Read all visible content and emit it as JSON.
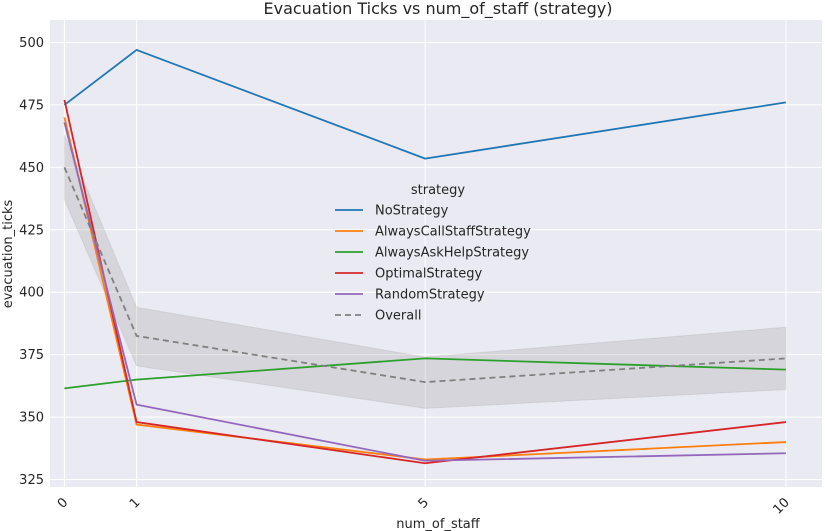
{
  "chart_data": {
    "type": "line",
    "title": "Evacuation Ticks vs num_of_staff (strategy)",
    "xlabel": "num_of_staff",
    "ylabel": "evacuation_ticks",
    "x": [
      0,
      1,
      5,
      10
    ],
    "xticks": [
      "0",
      "1",
      "5",
      "10"
    ],
    "yticks": [
      325,
      350,
      375,
      400,
      425,
      450,
      475,
      500
    ],
    "xlim": [
      -0.2,
      10.5
    ],
    "ylim": [
      322,
      509
    ],
    "grid": true,
    "legend": {
      "title": "strategy",
      "placement": "center"
    },
    "series": [
      {
        "name": "NoStrategy",
        "color": "#1f77b4",
        "values": [
          475,
          497,
          453.5,
          476
        ]
      },
      {
        "name": "AlwaysCallStaffStrategy",
        "color": "#ff7f0e",
        "values": [
          470,
          347,
          333,
          340
        ]
      },
      {
        "name": "AlwaysAskHelpStrategy",
        "color": "#2ca02c",
        "values": [
          361.5,
          365,
          373.5,
          369
        ]
      },
      {
        "name": "OptimalStrategy",
        "color": "#d62728",
        "values": [
          477,
          348,
          331.5,
          348
        ]
      },
      {
        "name": "RandomStrategy",
        "color": "#9467bd",
        "values": [
          468,
          355,
          332.5,
          335.5
        ]
      }
    ],
    "overall": {
      "name": "Overall",
      "color": "#808080",
      "values": [
        450,
        382.5,
        364,
        373.5
      ],
      "ci_low": [
        437,
        370.5,
        353.5,
        361
      ],
      "ci_high": [
        463,
        394,
        374,
        386
      ]
    }
  }
}
